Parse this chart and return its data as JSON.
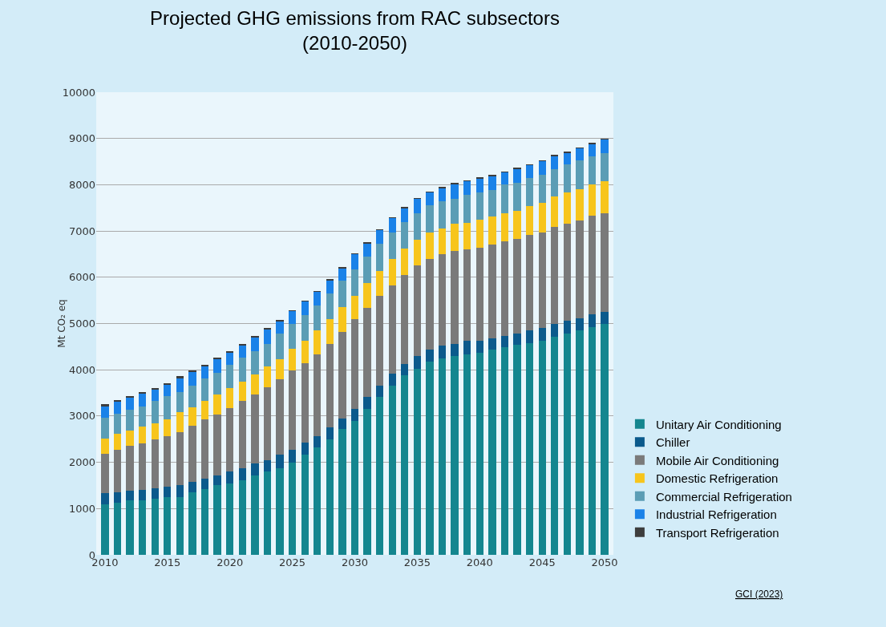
{
  "chart_data": {
    "type": "bar",
    "stacked": true,
    "title": "Projected GHG emissions from RAC subsectors\n(2010-2050)",
    "ylabel": "Mt CO₂ eq",
    "annotations": [
      "GCI (2023)"
    ],
    "categories": [
      "2010",
      null,
      null,
      null,
      null,
      "2015",
      null,
      null,
      null,
      null,
      "2020",
      null,
      null,
      null,
      null,
      "2025",
      null,
      null,
      null,
      null,
      "2030",
      null,
      null,
      null,
      null,
      "2035",
      null,
      null,
      null,
      null,
      "2040",
      null,
      null,
      null,
      null,
      "2045",
      null,
      null,
      null,
      null,
      "2050"
    ],
    "ylim": [
      0,
      10000
    ],
    "yticks": [
      0,
      1000,
      2000,
      3000,
      4000,
      5000,
      6000,
      7000,
      8000,
      9000,
      10000
    ],
    "grid": "y",
    "legend": "right",
    "series": [
      {
        "name": "Unitary Air Conditioning",
        "color": "#14868f",
        "values": [
          1090,
          1120,
          1170,
          1170,
          1220,
          1250,
          1250,
          1360,
          1420,
          1500,
          1550,
          1610,
          1720,
          1810,
          1880,
          2000,
          2170,
          2330,
          2500,
          2720,
          2890,
          3160,
          3410,
          3650,
          3880,
          4020,
          4180,
          4240,
          4290,
          4340,
          4370,
          4430,
          4490,
          4540,
          4580,
          4630,
          4720,
          4790,
          4850,
          4930,
          4990
        ]
      },
      {
        "name": "Chiller",
        "color": "#0b5a8c",
        "values": [
          240,
          240,
          220,
          240,
          220,
          220,
          250,
          220,
          220,
          210,
          260,
          270,
          250,
          240,
          280,
          270,
          250,
          230,
          250,
          230,
          270,
          250,
          250,
          260,
          250,
          270,
          250,
          280,
          270,
          280,
          250,
          250,
          240,
          250,
          270,
          270,
          270,
          270,
          270,
          270,
          260
        ]
      },
      {
        "name": "Mobile Air Conditioning",
        "color": "#7a7a7a",
        "values": [
          850,
          910,
          970,
          1000,
          1050,
          1100,
          1160,
          1210,
          1290,
          1330,
          1370,
          1440,
          1490,
          1570,
          1640,
          1710,
          1730,
          1780,
          1810,
          1870,
          1930,
          1930,
          1930,
          1920,
          1920,
          1960,
          1960,
          1980,
          2000,
          1990,
          2020,
          2020,
          2040,
          2040,
          2060,
          2070,
          2100,
          2100,
          2100,
          2130,
          2140
        ]
      },
      {
        "name": "Domestic Refrigeration",
        "color": "#f7c51c",
        "values": [
          340,
          340,
          330,
          360,
          360,
          360,
          420,
          400,
          390,
          420,
          420,
          420,
          440,
          450,
          430,
          480,
          480,
          510,
          530,
          530,
          500,
          530,
          550,
          560,
          570,
          560,
          570,
          560,
          590,
          570,
          600,
          610,
          620,
          610,
          630,
          640,
          650,
          670,
          690,
          670,
          690
        ]
      },
      {
        "name": "Commercial Refrigeration",
        "color": "#5b9db5",
        "values": [
          440,
          440,
          440,
          440,
          470,
          500,
          440,
          460,
          490,
          480,
          500,
          520,
          500,
          490,
          560,
          530,
          550,
          540,
          560,
          570,
          580,
          580,
          580,
          580,
          580,
          580,
          600,
          580,
          550,
          600,
          600,
          580,
          610,
          610,
          600,
          600,
          600,
          610,
          610,
          610,
          610
        ]
      },
      {
        "name": "Industrial Refrigeration",
        "color": "#1a82e8",
        "values": [
          250,
          270,
          270,
          280,
          260,
          260,
          300,
          310,
          270,
          300,
          270,
          270,
          300,
          310,
          270,
          280,
          300,
          300,
          290,
          280,
          330,
          290,
          300,
          310,
          300,
          310,
          280,
          290,
          320,
          300,
          300,
          300,
          270,
          300,
          290,
          300,
          290,
          260,
          270,
          280,
          290
        ]
      },
      {
        "name": "Transport Refrigeration",
        "color": "#3d3d3d",
        "values": [
          50,
          30,
          30,
          30,
          20,
          20,
          40,
          30,
          20,
          30,
          30,
          30,
          30,
          30,
          10,
          10,
          10,
          10,
          10,
          10,
          10,
          10,
          10,
          10,
          10,
          10,
          10,
          10,
          10,
          10,
          10,
          10,
          10,
          10,
          10,
          10,
          10,
          10,
          10,
          10,
          10
        ]
      }
    ]
  }
}
